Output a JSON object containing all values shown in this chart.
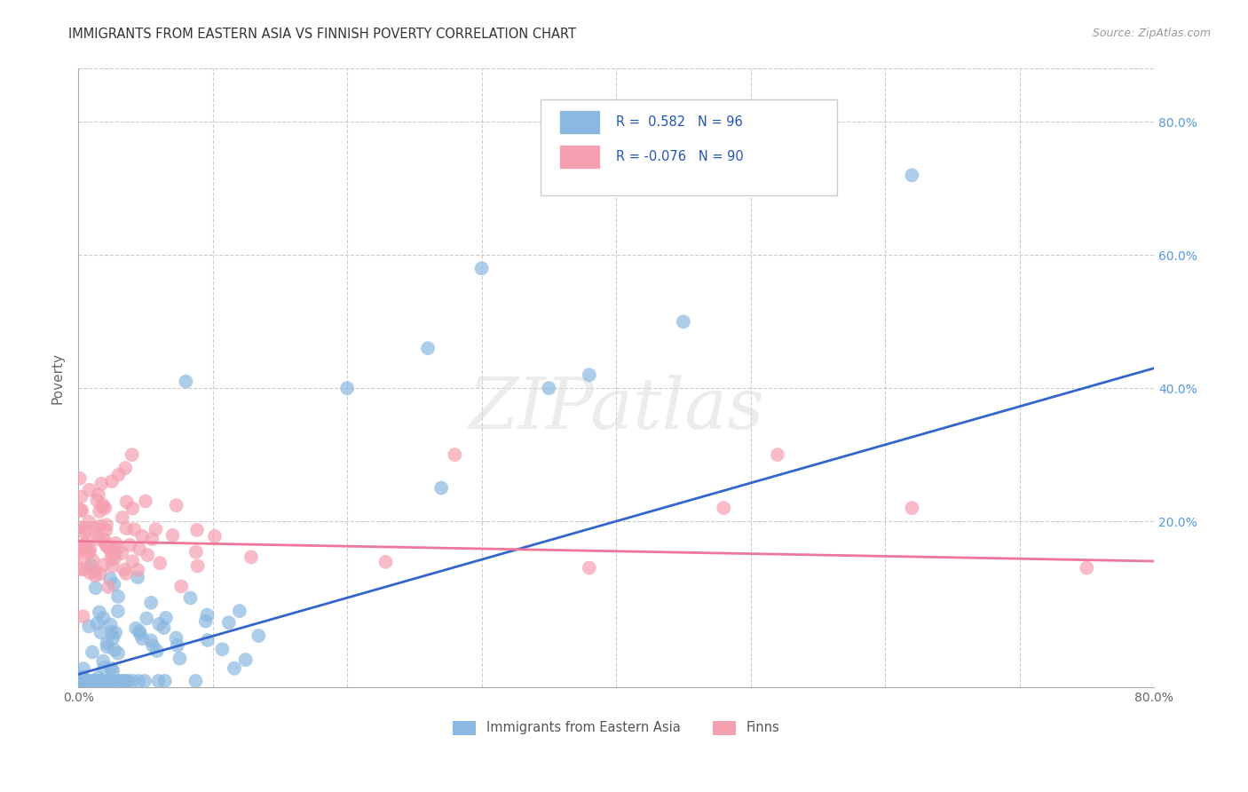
{
  "title": "IMMIGRANTS FROM EASTERN ASIA VS FINNISH POVERTY CORRELATION CHART",
  "source": "Source: ZipAtlas.com",
  "ylabel": "Poverty",
  "xlim": [
    0.0,
    0.8
  ],
  "ylim": [
    -0.05,
    0.88
  ],
  "legend_label1": "Immigrants from Eastern Asia",
  "legend_label2": "Finns",
  "r1": 0.582,
  "n1": 96,
  "r2": -0.076,
  "n2": 90,
  "color1": "#8BB8E0",
  "color2": "#F4A0B0",
  "color1_line": "#3366CC",
  "color2_line": "#EE7799",
  "watermark": "ZIPatlas",
  "blue_line_x": [
    0.0,
    0.8
  ],
  "blue_line_y": [
    -0.03,
    0.43
  ],
  "pink_line_x": [
    0.0,
    0.8
  ],
  "pink_line_y": [
    0.17,
    0.14
  ],
  "ytick_positions": [
    0.0,
    0.2,
    0.4,
    0.6,
    0.8
  ],
  "ytick_labels_right": [
    "",
    "20.0%",
    "40.0%",
    "60.0%",
    "80.0%"
  ],
  "xtick_positions": [
    0.0,
    0.1,
    0.2,
    0.3,
    0.4,
    0.5,
    0.6,
    0.7,
    0.8
  ],
  "xtick_labels": [
    "0.0%",
    "",
    "",
    "",
    "",
    "",
    "",
    "",
    "80.0%"
  ]
}
